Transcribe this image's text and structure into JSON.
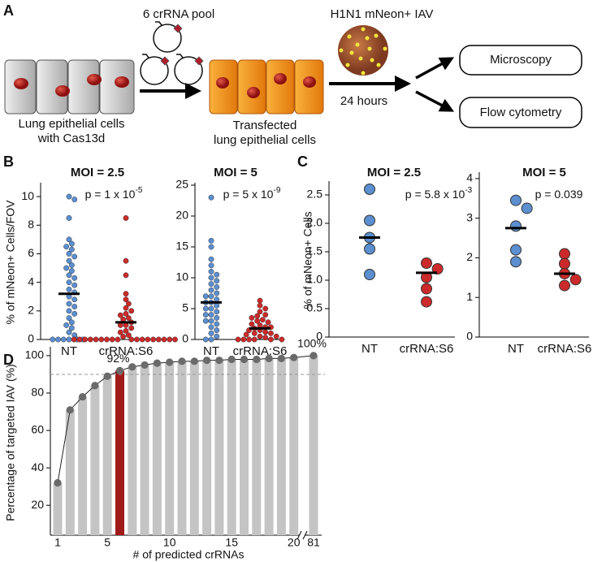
{
  "panel_labels": {
    "a": "A",
    "b": "B",
    "c": "C",
    "d": "D"
  },
  "diagram": {
    "pool_label": "6 crRNA pool",
    "virus_label": "H1N1 mNeon+ IAV",
    "cells_label": [
      "Lung epithelial cells",
      "with Cas13d"
    ],
    "transfected_label": [
      "Transfected",
      "lung epithelial cells"
    ],
    "time_label": "24 hours",
    "outputs": [
      "Microscopy",
      "Flow cytometry"
    ]
  },
  "chart_data": [
    {
      "type": "strip",
      "title": "MOI = 2.5",
      "annotation": {
        "text": "p = 1 x 10",
        "superscript": "-5"
      },
      "ylabel": "% of mNeon+ Cells/FOV",
      "categories": [
        "NT",
        "crRNA:S6"
      ],
      "values": [
        [
          10,
          9.8,
          8.5,
          7,
          6.7,
          6.5,
          6.3,
          6,
          5.8,
          5.5,
          5.2,
          5,
          4.8,
          4.5,
          4.3,
          4,
          3.8,
          3.5,
          3.3,
          3,
          2.8,
          2.5,
          2.3,
          2,
          1.8,
          1.5,
          1.2,
          1,
          0.8,
          0.5,
          0.3,
          0,
          0,
          0,
          0,
          0,
          0
        ],
        [
          8.5,
          5.5,
          4.5,
          3.2,
          2.8,
          2.5,
          2.2,
          2,
          1.8,
          1.7,
          1.5,
          1.4,
          1.2,
          1,
          1,
          0.8,
          0.6,
          0.5,
          0.3,
          0.2,
          0,
          0,
          0,
          0,
          0,
          0,
          0,
          0,
          0,
          0,
          0,
          0,
          0,
          0,
          0,
          0,
          0,
          0
        ]
      ],
      "colors": [
        "#5b8fd0",
        "#cc2a2a"
      ],
      "means": [
        3.2,
        1.2
      ],
      "ylim": [
        0,
        10.8
      ],
      "yticks": [
        0,
        2,
        4,
        6,
        8,
        10
      ]
    },
    {
      "type": "strip",
      "title": "MOI = 5",
      "annotation": {
        "text": "p = 5 x 10",
        "superscript": "-9"
      },
      "categories": [
        "NT",
        "crRNA:S6"
      ],
      "values": [
        [
          23,
          16,
          15,
          13,
          12,
          11,
          10.5,
          10,
          9.5,
          9,
          8.5,
          8,
          7.5,
          7,
          7,
          6.5,
          6,
          6,
          5.5,
          5,
          5,
          4.5,
          4,
          4,
          3.5,
          3,
          3,
          2.5,
          2,
          1.5,
          1,
          0.5,
          0,
          0
        ],
        [
          6.3,
          5.5,
          5,
          4.5,
          4,
          3.8,
          3.5,
          3.2,
          3,
          2.8,
          2.5,
          2.3,
          2,
          2,
          1.8,
          1.5,
          1.5,
          1.2,
          1,
          1,
          0.8,
          0.5,
          0.5,
          0.3,
          0,
          0,
          0,
          0,
          0,
          0
        ]
      ],
      "colors": [
        "#5b8fd0",
        "#cc2a2a"
      ],
      "means": [
        6,
        1.8
      ],
      "ylim": [
        0,
        25
      ],
      "yticks": [
        0,
        5,
        10,
        15,
        20,
        25
      ]
    },
    {
      "type": "strip",
      "title": "MOI = 2.5",
      "annotation": {
        "text": "p = 5.8 x 10",
        "superscript": "-3"
      },
      "ylabel": "% of mNeon+ Cells",
      "categories": [
        "NT",
        "crRNA:S6"
      ],
      "values": [
        [
          2.6,
          2.05,
          1.75,
          1.55,
          1.1
        ],
        [
          1.3,
          1.2,
          1.05,
          0.85,
          0.62
        ]
      ],
      "colors": [
        "#5b8fd0",
        "#cc2a2a"
      ],
      "means": [
        1.75,
        1.13
      ],
      "ylim": [
        0,
        2.7
      ],
      "yticks": [
        0,
        0.5,
        {
          "value": 1,
          "label": "1.0"
        },
        1.5,
        {
          "value": 2,
          "label": "2.0"
        },
        2.5
      ]
    },
    {
      "type": "strip",
      "title": "MOI = 5",
      "annotation": {
        "text": "p = 0.039"
      },
      "categories": [
        "NT",
        "crRNA:S6"
      ],
      "values": [
        [
          3.45,
          3.25,
          2.8,
          2.2,
          1.9
        ],
        [
          2.1,
          1.85,
          1.6,
          1.45,
          1.3
        ]
      ],
      "colors": [
        "#5b8fd0",
        "#cc2a2a"
      ],
      "means": [
        2.75,
        1.6
      ],
      "ylim": [
        0,
        4.1
      ],
      "yticks": [
        0,
        1,
        2,
        3,
        4
      ]
    },
    {
      "type": "bar",
      "ylabel": "Percentage of targeted IAV (%)",
      "xlabel": "# of predicted crRNAs",
      "categories": [
        "1",
        null,
        null,
        null,
        "5",
        null,
        null,
        null,
        null,
        "10",
        null,
        null,
        null,
        null,
        "15",
        null,
        null,
        null,
        null,
        "20",
        "81"
      ],
      "values": [
        32,
        71,
        78,
        84,
        89,
        92,
        94,
        95,
        96,
        96.5,
        97,
        97,
        97.5,
        97.5,
        98,
        98,
        98,
        98.5,
        98.5,
        99,
        100
      ],
      "value_labels": [
        null,
        null,
        null,
        null,
        null,
        "92%",
        null,
        null,
        null,
        null,
        null,
        null,
        null,
        null,
        null,
        null,
        null,
        null,
        null,
        null,
        "100%"
      ],
      "colors": [
        "#c4c4c4",
        "#c4c4c4",
        "#c4c4c4",
        "#c4c4c4",
        "#c4c4c4",
        "#a01a1a",
        "#c4c4c4",
        "#c4c4c4",
        "#c4c4c4",
        "#c4c4c4",
        "#c4c4c4",
        "#c4c4c4",
        "#c4c4c4",
        "#c4c4c4",
        "#c4c4c4",
        "#c4c4c4",
        "#c4c4c4",
        "#c4c4c4",
        "#c4c4c4",
        "#c4c4c4",
        "#c4c4c4"
      ],
      "marker_color": "#6a6a6a",
      "reference_line": 90,
      "axis_break": true,
      "ylim": [
        4,
        103
      ],
      "yticks": [
        20,
        40,
        60,
        80,
        100
      ]
    }
  ]
}
